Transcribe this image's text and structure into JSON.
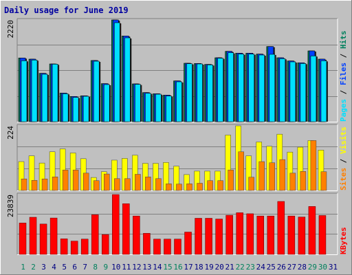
{
  "colors": {
    "background": "#c0c0c0",
    "plot_bg": "#c0c0c0",
    "grid": "#808080",
    "title": "#0000a0",
    "hits": "#00805c",
    "files": "#0040ff",
    "pages": "#00e0ff",
    "visits": "#ffff00",
    "sites": "#ff8000",
    "kbytes": "#ff0000",
    "weekend_day": "#00805c",
    "weekday": "#000080"
  },
  "chart_data": {
    "type": "bar",
    "title": "Daily usage for June 2019",
    "days": [
      "1",
      "2",
      "3",
      "4",
      "5",
      "6",
      "7",
      "8",
      "9",
      "10",
      "11",
      "12",
      "13",
      "14",
      "15",
      "16",
      "17",
      "18",
      "19",
      "20",
      "21",
      "22",
      "23",
      "24",
      "25",
      "26",
      "27",
      "28",
      "29",
      "30",
      "31"
    ],
    "weekend_days": [
      1,
      2,
      8,
      9,
      15,
      16,
      22,
      23,
      29,
      30
    ],
    "panels": [
      {
        "id": "hits_files_pages",
        "max_label": "2220",
        "ymax": 2220,
        "legend": [
          {
            "text": "Pages",
            "color": "#00e0ff"
          },
          {
            "text": "Files",
            "color": "#0040ff"
          },
          {
            "text": "Hits",
            "color": "#00805c"
          }
        ],
        "series": [
          {
            "name": "Hits",
            "values": [
              1390,
              1365,
              1055,
              1260,
              625,
              550,
              565,
              1335,
              830,
              2220,
              1870,
              825,
              635,
              610,
              580,
              890,
              1275,
              1270,
              1250,
              1395,
              1535,
              1495,
              1495,
              1475,
              1640,
              1395,
              1325,
              1285,
              1545,
              1365,
              0
            ]
          },
          {
            "name": "Files",
            "values": [
              1390,
              1365,
              1055,
              1260,
              625,
              550,
              565,
              1335,
              830,
              2220,
              1870,
              825,
              635,
              610,
              580,
              890,
              1275,
              1270,
              1250,
              1395,
              1535,
              1495,
              1495,
              1475,
              1640,
              1395,
              1325,
              1285,
              1545,
              1365,
              0
            ]
          },
          {
            "name": "Pages",
            "values": [
              1330,
              1345,
              1035,
              1255,
              610,
              530,
              555,
              1320,
              810,
              2160,
              1830,
              815,
              620,
              600,
              560,
              870,
              1265,
              1260,
              1240,
              1385,
              1505,
              1475,
              1475,
              1455,
              1470,
              1375,
              1305,
              1270,
              1435,
              1330,
              0
            ]
          }
        ]
      },
      {
        "id": "visits_sites",
        "max_label": "224",
        "ymax": 224,
        "legend": [
          {
            "text": "Sites",
            "color": "#ff8000"
          },
          {
            "text": "Visits",
            "color": "#ffff00"
          }
        ],
        "series": [
          {
            "name": "Visits",
            "values": [
              100,
              120,
              95,
              134,
              144,
              130,
              110,
              45,
              65,
              105,
              111,
              122,
              94,
              94,
              97,
              84,
              55,
              67,
              67,
              67,
              192,
              224,
              120,
              168,
              153,
              195,
              133,
              150,
              173,
              140,
              0
            ]
          },
          {
            "name": "Sites",
            "values": [
              40,
              35,
              40,
              47,
              71,
              71,
              60,
              34,
              57,
              41,
              41,
              56,
              47,
              41,
              23,
              22,
              23,
              25,
              34,
              34,
              71,
              134,
              46,
              100,
              96,
              107,
              60,
              66,
              173,
              65,
              0
            ]
          }
        ]
      },
      {
        "id": "kbytes",
        "max_label": "23839",
        "ymax": 23839,
        "legend": [
          {
            "text": "KBytes",
            "color": "#ff0000"
          }
        ],
        "series": [
          {
            "name": "KBytes",
            "values": [
              12500,
              14800,
              12100,
              14500,
              6200,
              5300,
              6100,
              15800,
              7900,
              23839,
              20200,
              15300,
              8400,
              6100,
              6100,
              6100,
              8900,
              14400,
              14400,
              14100,
              15600,
              16600,
              16200,
              15300,
              15300,
              21100,
              15300,
              14900,
              19100,
              15500,
              0
            ]
          }
        ]
      }
    ]
  }
}
